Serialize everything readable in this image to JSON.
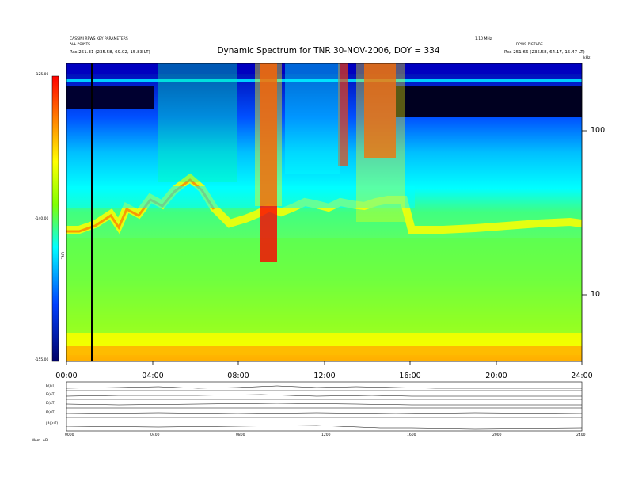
{
  "header": {
    "left_line1": "CASSINI RPWS KEY PARAMETERS",
    "left_line2": "ALL POINTS",
    "left_line3": "Rss  251.31 (235.58, 69.02, 15.83 LT)",
    "right_line1": "1.10 MHz",
    "right_line2": "RPWS PICTURE",
    "right_line3": "Rss  251.66 (235.58, 64.17, 15.47 LT)",
    "freq_unit": "kHz",
    "title": "Dynamic Spectrum for TNR 30-NOV-2006, DOY = 334"
  },
  "colorbar": {
    "ticks": [
      "-125.00",
      "-140.00",
      "-155.00"
    ],
    "label": "TNR"
  },
  "chart_data": {
    "type": "heatmap",
    "title": "Dynamic Spectrum for TNR 30-NOV-2006, DOY = 334",
    "xlabel": "",
    "ylabel": "",
    "x_ticks": [
      "00:00",
      "04:00",
      "08:00",
      "12:00",
      "16:00",
      "20:00",
      "24:00"
    ],
    "x_range_hours": [
      0,
      24
    ],
    "y_scale": "log",
    "y_ticks": [
      "100",
      "10"
    ],
    "colorbar_range": [
      -155,
      -125
    ],
    "colormap": [
      "#000033",
      "#0000ff",
      "#00ffff",
      "#00ff80",
      "#80ff00",
      "#ffff00",
      "#ff8000",
      "#ff0000"
    ],
    "intense_bursts": [
      {
        "start_hour": 9.0,
        "end_hour": 9.8
      },
      {
        "start_hour": 12.7,
        "end_hour": 13.1
      },
      {
        "start_hour": 13.8,
        "end_hour": 15.3
      }
    ],
    "marker_hour": 1.2
  },
  "bottom_panels": {
    "labels": [
      "B(nT)",
      "B(nT)",
      "B(nT)",
      "B(nT)",
      "|B|(nT)",
      ""
    ],
    "axis_ticks": [
      "0000",
      "0400",
      "0800",
      "1200",
      "1600",
      "2000",
      "2400"
    ],
    "footer_label": "Mom.  AB"
  }
}
